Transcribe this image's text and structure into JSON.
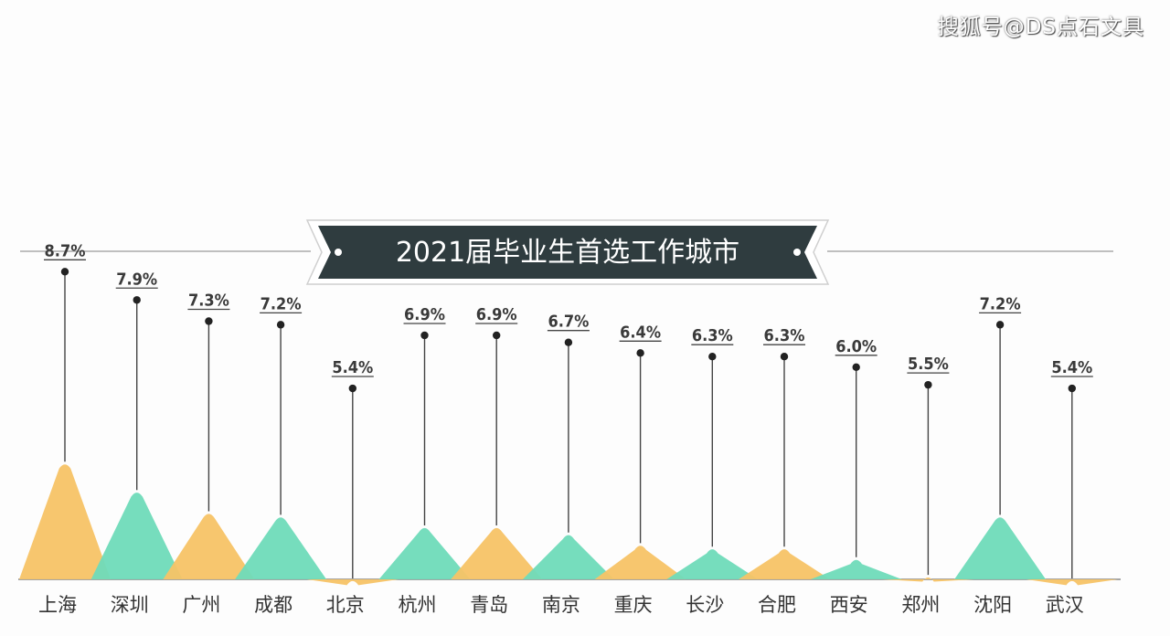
{
  "watermark": "搜狐号@DS点石文具",
  "chart_data": {
    "type": "bar",
    "title": "2021届毕业生首选工作城市",
    "categories": [
      "上海",
      "深圳",
      "广州",
      "成都",
      "北京",
      "杭州",
      "青岛",
      "南京",
      "重庆",
      "长沙",
      "合肥",
      "西安",
      "郑州",
      "沈阳",
      "武汉"
    ],
    "values": [
      8.7,
      7.9,
      7.3,
      7.2,
      5.4,
      6.9,
      6.9,
      6.7,
      6.4,
      6.3,
      6.3,
      6.0,
      5.5,
      7.2,
      5.4
    ],
    "value_labels": [
      "8.7%",
      "7.9%",
      "7.3%",
      "7.2%",
      "5.4%",
      "6.9%",
      "6.9%",
      "6.7%",
      "6.4%",
      "6.3%",
      "6.3%",
      "6.0%",
      "5.5%",
      "7.2%",
      "5.4%"
    ],
    "unit": "%",
    "colors": {
      "orange": "#f7c366",
      "green": "#6fdbb9",
      "title_banner": "#2f3c3f",
      "label": "#3a3a3a"
    },
    "color_pattern": [
      "orange",
      "green"
    ],
    "grid": false,
    "legend": "none"
  }
}
